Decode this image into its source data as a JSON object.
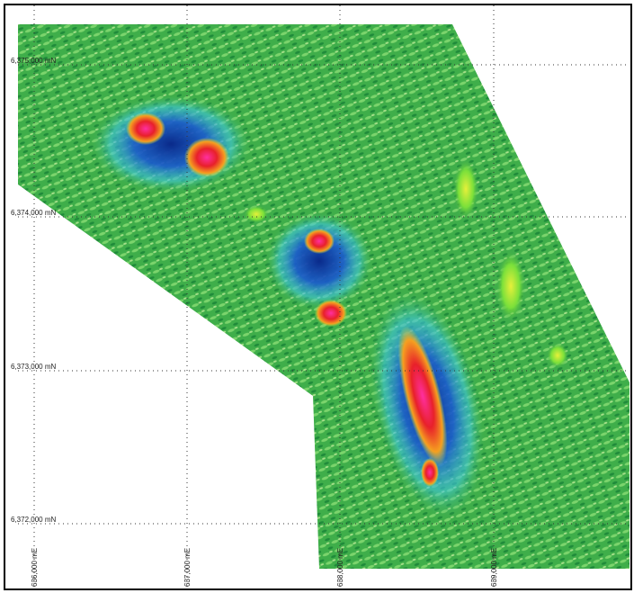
{
  "map": {
    "northings": [
      "6,375,000 mN",
      "6,374,000 mN",
      "6,373,000 mN",
      "6,372,000 mN"
    ],
    "eastings": [
      "636,000 mE",
      "637,000 mE",
      "638,000 mE",
      "639,000 mE"
    ]
  }
}
